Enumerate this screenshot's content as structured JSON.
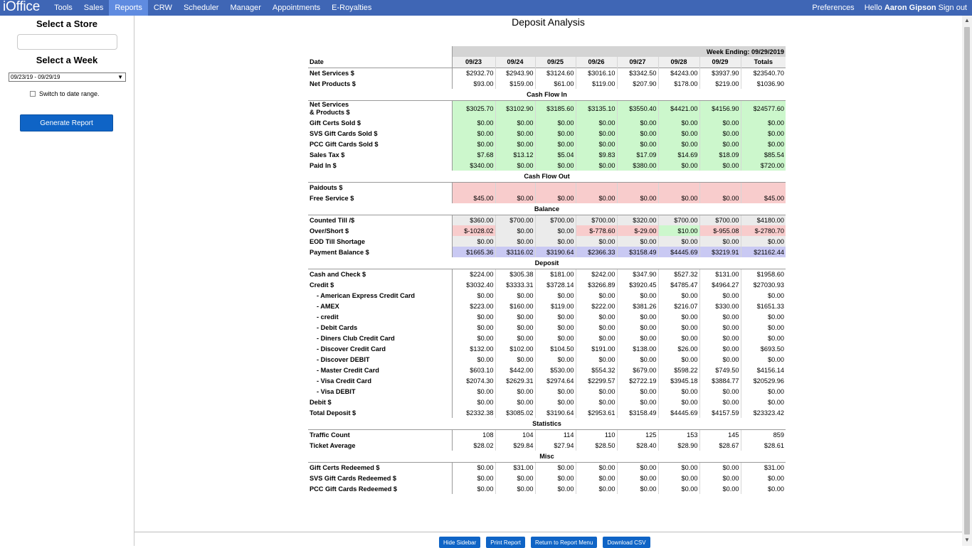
{
  "nav": {
    "brand": "iOffice",
    "items": [
      "Tools",
      "Sales",
      "Reports",
      "CRW",
      "Scheduler",
      "Manager",
      "Appointments",
      "E-Royalties"
    ],
    "active": "Reports",
    "preferences": "Preferences",
    "hello_prefix": "Hello",
    "user_name": "Aaron Gipson",
    "sign_out": "Sign out"
  },
  "sidebar": {
    "store_heading": "Select a Store",
    "store_value": "",
    "week_heading": "Select a Week",
    "week_value": "09/23/19 - 09/29/19",
    "switch_label": "Switch to date range.",
    "generate_button": "Generate Report"
  },
  "report": {
    "title": "Deposit Analysis",
    "week_ending": "Week Ending: 09/29/2019",
    "date_label": "Date",
    "dates": [
      "09/23",
      "09/24",
      "09/25",
      "09/26",
      "09/27",
      "09/28",
      "09/29",
      "Totals"
    ],
    "sections": [
      {
        "title": null,
        "rows": [
          {
            "label": "Net Services $",
            "bg": "wb",
            "values": [
              "$2932.70",
              "$2943.90",
              "$3124.60",
              "$3016.10",
              "$3342.50",
              "$4243.00",
              "$3937.90",
              "$23540.70"
            ]
          },
          {
            "label": "Net Products $",
            "bg": "wb",
            "values": [
              "$93.00",
              "$159.00",
              "$61.00",
              "$119.00",
              "$207.90",
              "$178.00",
              "$219.00",
              "$1036.90"
            ]
          }
        ]
      },
      {
        "title": "Cash Flow In",
        "rows": [
          {
            "label": "Net Services",
            "label2": "& Products $",
            "bg": "g",
            "values": [
              "$3025.70",
              "$3102.90",
              "$3185.60",
              "$3135.10",
              "$3550.40",
              "$4421.00",
              "$4156.90",
              "$24577.60"
            ]
          },
          {
            "label": "Gift Certs Sold $",
            "bg": "g",
            "values": [
              "$0.00",
              "$0.00",
              "$0.00",
              "$0.00",
              "$0.00",
              "$0.00",
              "$0.00",
              "$0.00"
            ]
          },
          {
            "label": "SVS Gift Cards Sold $",
            "bg": "g",
            "values": [
              "$0.00",
              "$0.00",
              "$0.00",
              "$0.00",
              "$0.00",
              "$0.00",
              "$0.00",
              "$0.00"
            ]
          },
          {
            "label": "PCC Gift Cards Sold $",
            "bg": "g",
            "values": [
              "$0.00",
              "$0.00",
              "$0.00",
              "$0.00",
              "$0.00",
              "$0.00",
              "$0.00",
              "$0.00"
            ]
          },
          {
            "label": "Sales Tax $",
            "bg": "g",
            "values": [
              "$7.68",
              "$13.12",
              "$5.04",
              "$9.83",
              "$17.09",
              "$14.69",
              "$18.09",
              "$85.54"
            ]
          },
          {
            "label": "Paid In $",
            "bg": "g",
            "values": [
              "$340.00",
              "$0.00",
              "$0.00",
              "$0.00",
              "$380.00",
              "$0.00",
              "$0.00",
              "$720.00"
            ]
          }
        ]
      },
      {
        "title": "Cash Flow Out",
        "rows": [
          {
            "label": "Paidouts $",
            "bg": "r",
            "values": [
              "",
              "",
              "",
              "",
              "",
              "",
              "",
              ""
            ]
          },
          {
            "label": "Free Service $",
            "bg": "r",
            "values": [
              "$45.00",
              "$0.00",
              "$0.00",
              "$0.00",
              "$0.00",
              "$0.00",
              "$0.00",
              "$45.00"
            ]
          }
        ]
      },
      {
        "title": "Balance",
        "rows": [
          {
            "label": "Counted Till /$",
            "bg": "lg",
            "values": [
              "$360.00",
              "$700.00",
              "$700.00",
              "$700.00",
              "$320.00",
              "$700.00",
              "$700.00",
              "$4180.00"
            ]
          },
          {
            "label": "Over/Short $",
            "bgs": [
              "r",
              "lg",
              "lg",
              "r",
              "r",
              "g",
              "r",
              "r"
            ],
            "values": [
              "$-1028.02",
              "$0.00",
              "$0.00",
              "$-778.60",
              "$-29.00",
              "$10.00",
              "$-955.08",
              "$-2780.70"
            ]
          },
          {
            "label": "EOD Till Shortage",
            "bg": "lg",
            "values": [
              "$0.00",
              "$0.00",
              "$0.00",
              "$0.00",
              "$0.00",
              "$0.00",
              "$0.00",
              "$0.00"
            ]
          },
          {
            "label": "Payment Balance $",
            "bg": "b",
            "values": [
              "$1665.36",
              "$3116.02",
              "$3190.64",
              "$2366.33",
              "$3158.49",
              "$4445.69",
              "$3219.91",
              "$21162.44"
            ]
          }
        ]
      },
      {
        "title": "Deposit",
        "rows": [
          {
            "label": "Cash and Check $",
            "bg": "wb",
            "values": [
              "$224.00",
              "$305.38",
              "$181.00",
              "$242.00",
              "$347.90",
              "$527.32",
              "$131.00",
              "$1958.60"
            ]
          },
          {
            "label": "Credit $",
            "bg": "wb",
            "values": [
              "$3032.40",
              "$3333.31",
              "$3728.14",
              "$3266.89",
              "$3920.45",
              "$4785.47",
              "$4964.27",
              "$27030.93"
            ]
          },
          {
            "label": "- American Express Credit Card",
            "indent": true,
            "bg": "wb",
            "values": [
              "$0.00",
              "$0.00",
              "$0.00",
              "$0.00",
              "$0.00",
              "$0.00",
              "$0.00",
              "$0.00"
            ]
          },
          {
            "label": "- AMEX",
            "indent": true,
            "bg": "wb",
            "values": [
              "$223.00",
              "$160.00",
              "$119.00",
              "$222.00",
              "$381.26",
              "$216.07",
              "$330.00",
              "$1651.33"
            ]
          },
          {
            "label": "- credit",
            "indent": true,
            "bg": "wb",
            "values": [
              "$0.00",
              "$0.00",
              "$0.00",
              "$0.00",
              "$0.00",
              "$0.00",
              "$0.00",
              "$0.00"
            ]
          },
          {
            "label": "- Debit Cards",
            "indent": true,
            "bg": "wb",
            "values": [
              "$0.00",
              "$0.00",
              "$0.00",
              "$0.00",
              "$0.00",
              "$0.00",
              "$0.00",
              "$0.00"
            ]
          },
          {
            "label": "- Diners Club Credit Card",
            "indent": true,
            "bg": "wb",
            "values": [
              "$0.00",
              "$0.00",
              "$0.00",
              "$0.00",
              "$0.00",
              "$0.00",
              "$0.00",
              "$0.00"
            ]
          },
          {
            "label": "- Discover Credit Card",
            "indent": true,
            "bg": "wb",
            "values": [
              "$132.00",
              "$102.00",
              "$104.50",
              "$191.00",
              "$138.00",
              "$26.00",
              "$0.00",
              "$693.50"
            ]
          },
          {
            "label": "- Discover DEBIT",
            "indent": true,
            "bg": "wb",
            "values": [
              "$0.00",
              "$0.00",
              "$0.00",
              "$0.00",
              "$0.00",
              "$0.00",
              "$0.00",
              "$0.00"
            ]
          },
          {
            "label": "- Master Credit Card",
            "indent": true,
            "bg": "wb",
            "values": [
              "$603.10",
              "$442.00",
              "$530.00",
              "$554.32",
              "$679.00",
              "$598.22",
              "$749.50",
              "$4156.14"
            ]
          },
          {
            "label": "- Visa Credit Card",
            "indent": true,
            "bg": "wb",
            "values": [
              "$2074.30",
              "$2629.31",
              "$2974.64",
              "$2299.57",
              "$2722.19",
              "$3945.18",
              "$3884.77",
              "$20529.96"
            ]
          },
          {
            "label": "- Visa DEBIT",
            "indent": true,
            "bg": "wb",
            "values": [
              "$0.00",
              "$0.00",
              "$0.00",
              "$0.00",
              "$0.00",
              "$0.00",
              "$0.00",
              "$0.00"
            ]
          },
          {
            "label": "Debit $",
            "bg": "wb",
            "values": [
              "$0.00",
              "$0.00",
              "$0.00",
              "$0.00",
              "$0.00",
              "$0.00",
              "$0.00",
              "$0.00"
            ]
          },
          {
            "label": "Total Deposit $",
            "bg": "wb",
            "values": [
              "$2332.38",
              "$3085.02",
              "$3190.64",
              "$2953.61",
              "$3158.49",
              "$4445.69",
              "$4157.59",
              "$23323.42"
            ]
          }
        ]
      },
      {
        "title": "Statistics",
        "rows": [
          {
            "label": "Traffic Count",
            "bg": "wb",
            "values": [
              "108",
              "104",
              "114",
              "110",
              "125",
              "153",
              "145",
              "859"
            ]
          },
          {
            "label": "Ticket Average",
            "bg": "wb",
            "values": [
              "$28.02",
              "$29.84",
              "$27.94",
              "$28.50",
              "$28.40",
              "$28.90",
              "$28.67",
              "$28.61"
            ]
          }
        ]
      },
      {
        "title": "Misc",
        "rows": [
          {
            "label": "Gift Certs Redeemed $",
            "bg": "wb",
            "values": [
              "$0.00",
              "$31.00",
              "$0.00",
              "$0.00",
              "$0.00",
              "$0.00",
              "$0.00",
              "$31.00"
            ]
          },
          {
            "label": "SVS Gift Cards Redeemed $",
            "bg": "wb",
            "values": [
              "$0.00",
              "$0.00",
              "$0.00",
              "$0.00",
              "$0.00",
              "$0.00",
              "$0.00",
              "$0.00"
            ]
          },
          {
            "label": "PCC Gift Cards Redeemed $",
            "bg": "wb",
            "values": [
              "$0.00",
              "$0.00",
              "$0.00",
              "$0.00",
              "$0.00",
              "$0.00",
              "$0.00",
              "$0.00"
            ]
          }
        ]
      }
    ]
  },
  "bottom_buttons": [
    "Hide Sidebar",
    "Print Report",
    "Return to Report Menu",
    "Download CSV"
  ],
  "colors": {
    "nav": "#3f66b5",
    "nav_active": "#5f8be0",
    "button": "#0f64c6",
    "green": "#ccf7cc",
    "red": "#f8cccc",
    "blue": "#c9c9f3"
  }
}
